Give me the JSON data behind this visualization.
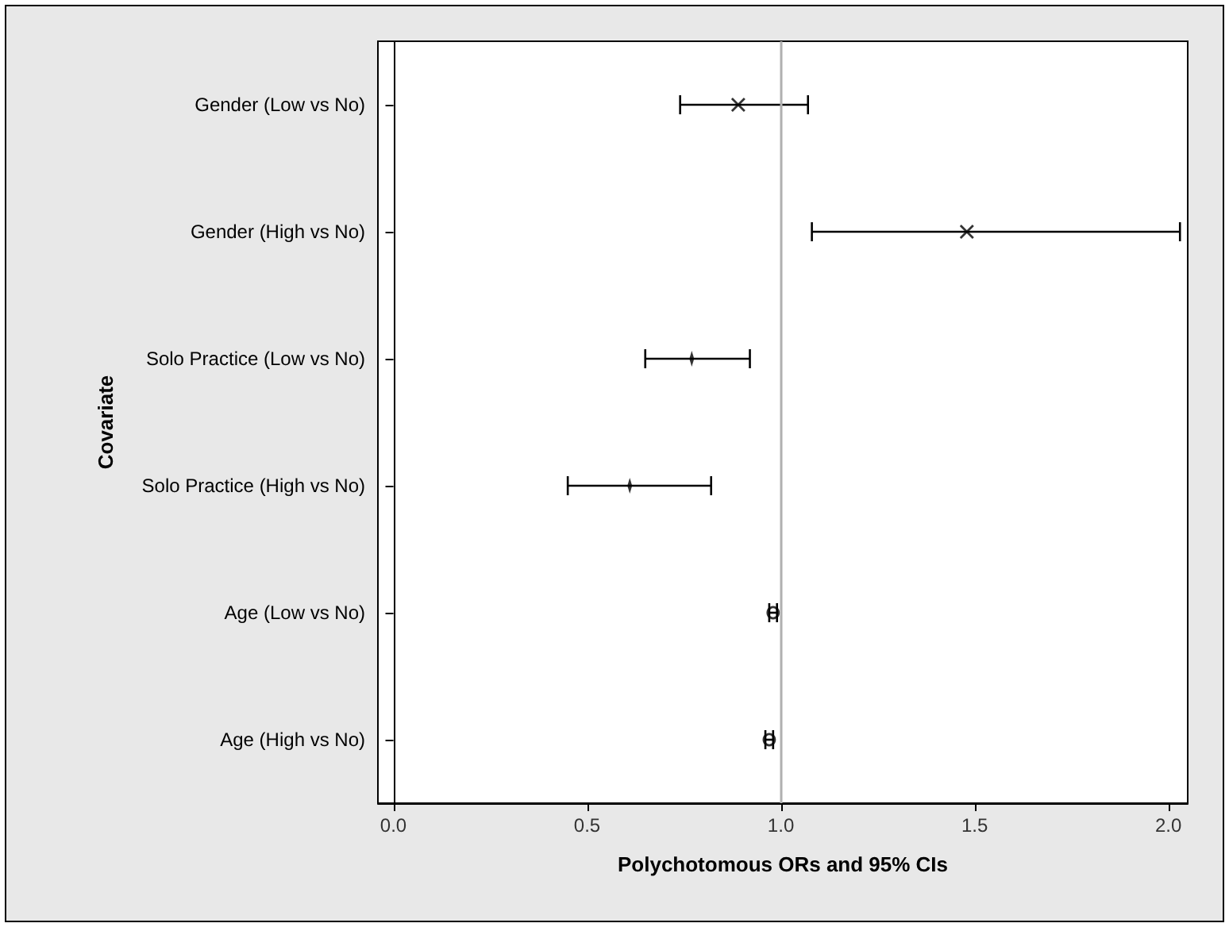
{
  "chart_data": {
    "type": "scatter",
    "orientation": "horizontal",
    "xlabel": "Polychotomous ORs and 95% CIs",
    "ylabel": "Covariate",
    "categories": [
      "Gender (Low vs No)",
      "Gender (High vs No)",
      "Solo Practice (Low vs No)",
      "Solo Practice (High vs No)",
      "Age (Low vs No)",
      "Age (High vs No)"
    ],
    "series": [
      {
        "marker": "cross",
        "color": "#000000",
        "values": [
          0.89,
          1.48,
          null,
          null,
          null,
          null
        ],
        "errors": [
          [
            0.74,
            1.07
          ],
          [
            1.08,
            2.03
          ],
          null,
          null,
          null,
          null
        ]
      },
      {
        "marker": "diamond",
        "color": "#000000",
        "values": [
          null,
          null,
          0.77,
          0.61,
          null,
          null
        ],
        "errors": [
          null,
          null,
          [
            0.65,
            0.92
          ],
          [
            0.45,
            0.82
          ],
          null,
          null
        ]
      },
      {
        "marker": "circle",
        "color": "#000000",
        "values": [
          null,
          null,
          null,
          null,
          0.98,
          0.97
        ],
        "errors": [
          null,
          null,
          null,
          null,
          [
            0.97,
            0.99
          ],
          [
            0.96,
            0.98
          ]
        ]
      }
    ],
    "xlim": [
      -0.04,
      2.05
    ],
    "xticks": [
      {
        "value": 0,
        "label": "0.0"
      },
      {
        "value": 0.5,
        "label": "0.5"
      },
      {
        "value": 1,
        "label": "1.0"
      },
      {
        "value": 1.5,
        "label": "1.5"
      },
      {
        "value": 2,
        "label": "2.0"
      }
    ],
    "ref_lines": [
      {
        "axis": "x",
        "value": 1,
        "color": "#b0b0b0"
      }
    ],
    "grid": false
  }
}
